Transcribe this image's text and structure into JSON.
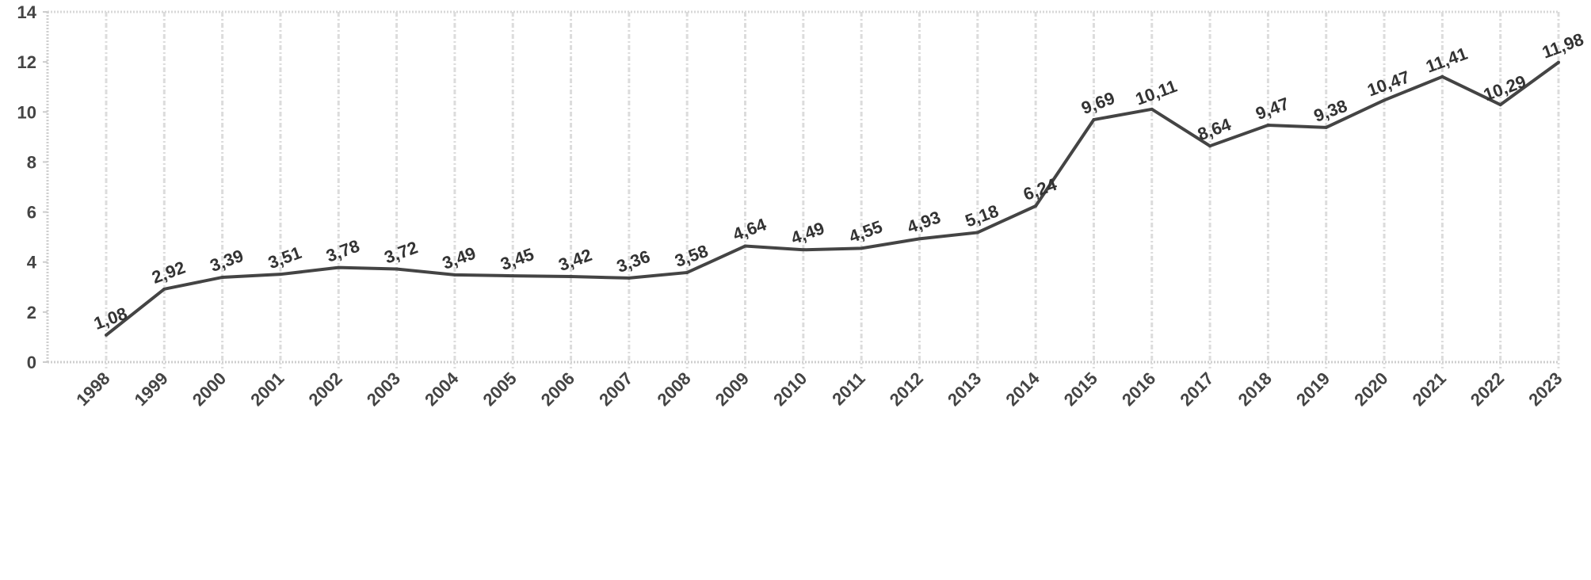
{
  "chart_data": {
    "type": "line",
    "title": "",
    "xlabel": "",
    "ylabel": "",
    "categories": [
      "1998",
      "1999",
      "2000",
      "2001",
      "2002",
      "2003",
      "2004",
      "2005",
      "2006",
      "2007",
      "2008",
      "2009",
      "2010",
      "2011",
      "2012",
      "2013",
      "2014",
      "2015",
      "2016",
      "2017",
      "2018",
      "2019",
      "2020",
      "2021",
      "2022",
      "2023"
    ],
    "values": [
      1.08,
      2.92,
      3.39,
      3.51,
      3.78,
      3.72,
      3.49,
      3.45,
      3.42,
      3.36,
      3.58,
      4.64,
      4.49,
      4.55,
      4.93,
      5.18,
      6.24,
      9.69,
      10.11,
      8.64,
      9.47,
      9.38,
      10.47,
      11.41,
      10.29,
      11.98
    ],
    "data_labels": [
      "1,08",
      "2,92",
      "3,39",
      "3,51",
      "3,78",
      "3,72",
      "3,49",
      "3,45",
      "3,42",
      "3,36",
      "3,58",
      "4,64",
      "4,49",
      "4,55",
      "4,93",
      "5,18",
      "6,24",
      "9,69",
      "10,11",
      "8,64",
      "9,47",
      "9,38",
      "10,47",
      "11,41",
      "10,29",
      "11,98"
    ],
    "ylim": [
      0,
      14
    ],
    "yticks": [
      "0",
      "2",
      "4",
      "6",
      "8",
      "10",
      "12",
      "14"
    ],
    "grid": "vertical dotted",
    "line_color": "#444444",
    "legend": "none"
  }
}
